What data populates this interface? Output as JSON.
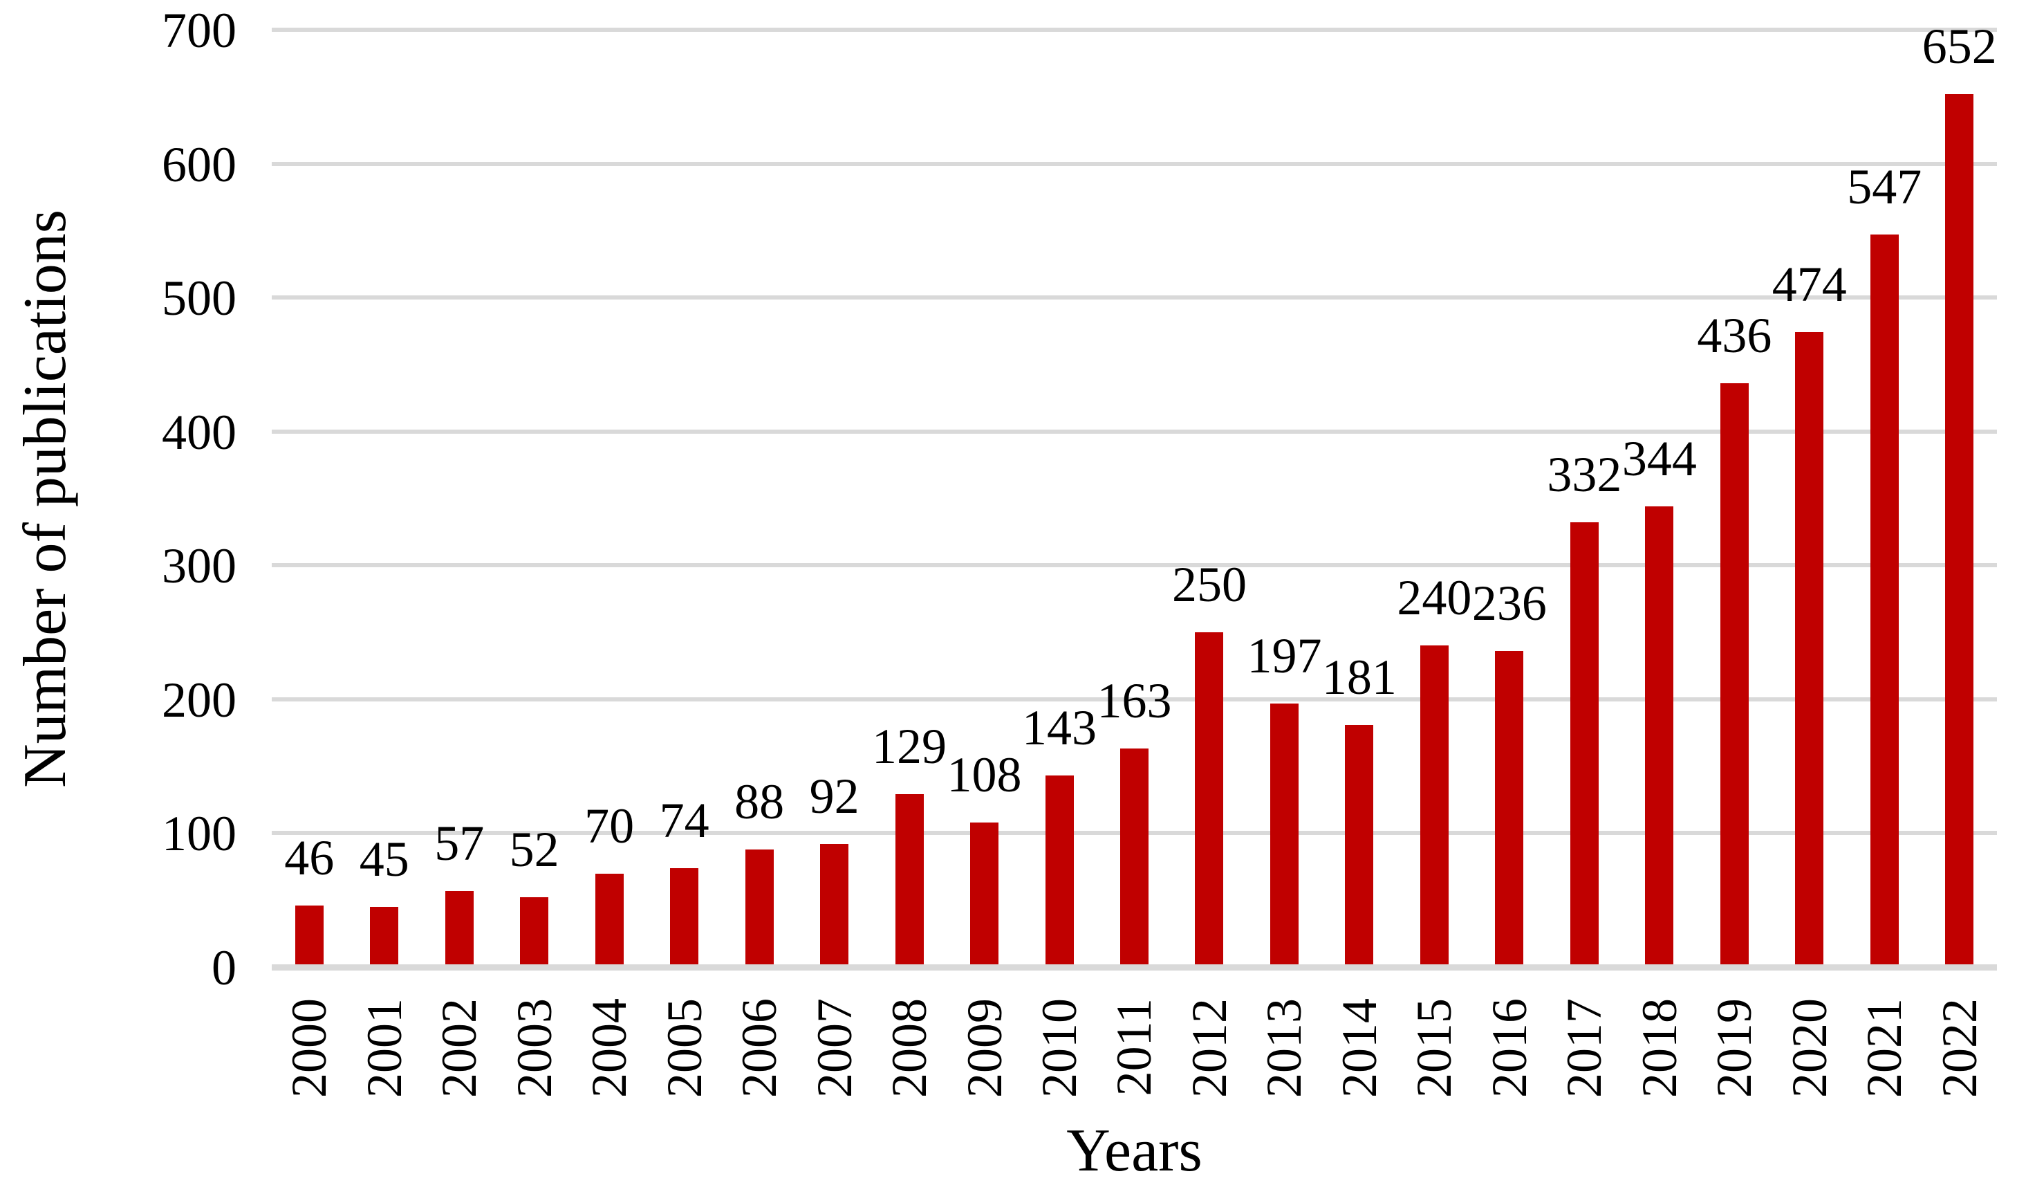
{
  "chart_data": {
    "type": "bar",
    "title": "",
    "xlabel": "Years",
    "ylabel": "Number of publications",
    "categories": [
      "2000",
      "2001",
      "2002",
      "2003",
      "2004",
      "2005",
      "2006",
      "2007",
      "2008",
      "2009",
      "2010",
      "2011",
      "2012",
      "2013",
      "2014",
      "2015",
      "2016",
      "2017",
      "2018",
      "2019",
      "2020",
      "2021",
      "2022"
    ],
    "values": [
      46,
      45,
      57,
      52,
      70,
      74,
      88,
      92,
      129,
      108,
      143,
      163,
      250,
      197,
      181,
      240,
      236,
      332,
      344,
      436,
      474,
      547,
      652
    ],
    "data_labels_shown": true,
    "ylim": [
      0,
      700
    ],
    "yticks": [
      0,
      100,
      200,
      300,
      400,
      500,
      600,
      700
    ],
    "grid": "horizontal",
    "legend": "none",
    "bar_color": "#C00000",
    "gridline_color": "#D9D9D9",
    "axis_line_color": "#D9D9D9",
    "text_color": "#000000",
    "background_color": "#FFFFFF"
  }
}
